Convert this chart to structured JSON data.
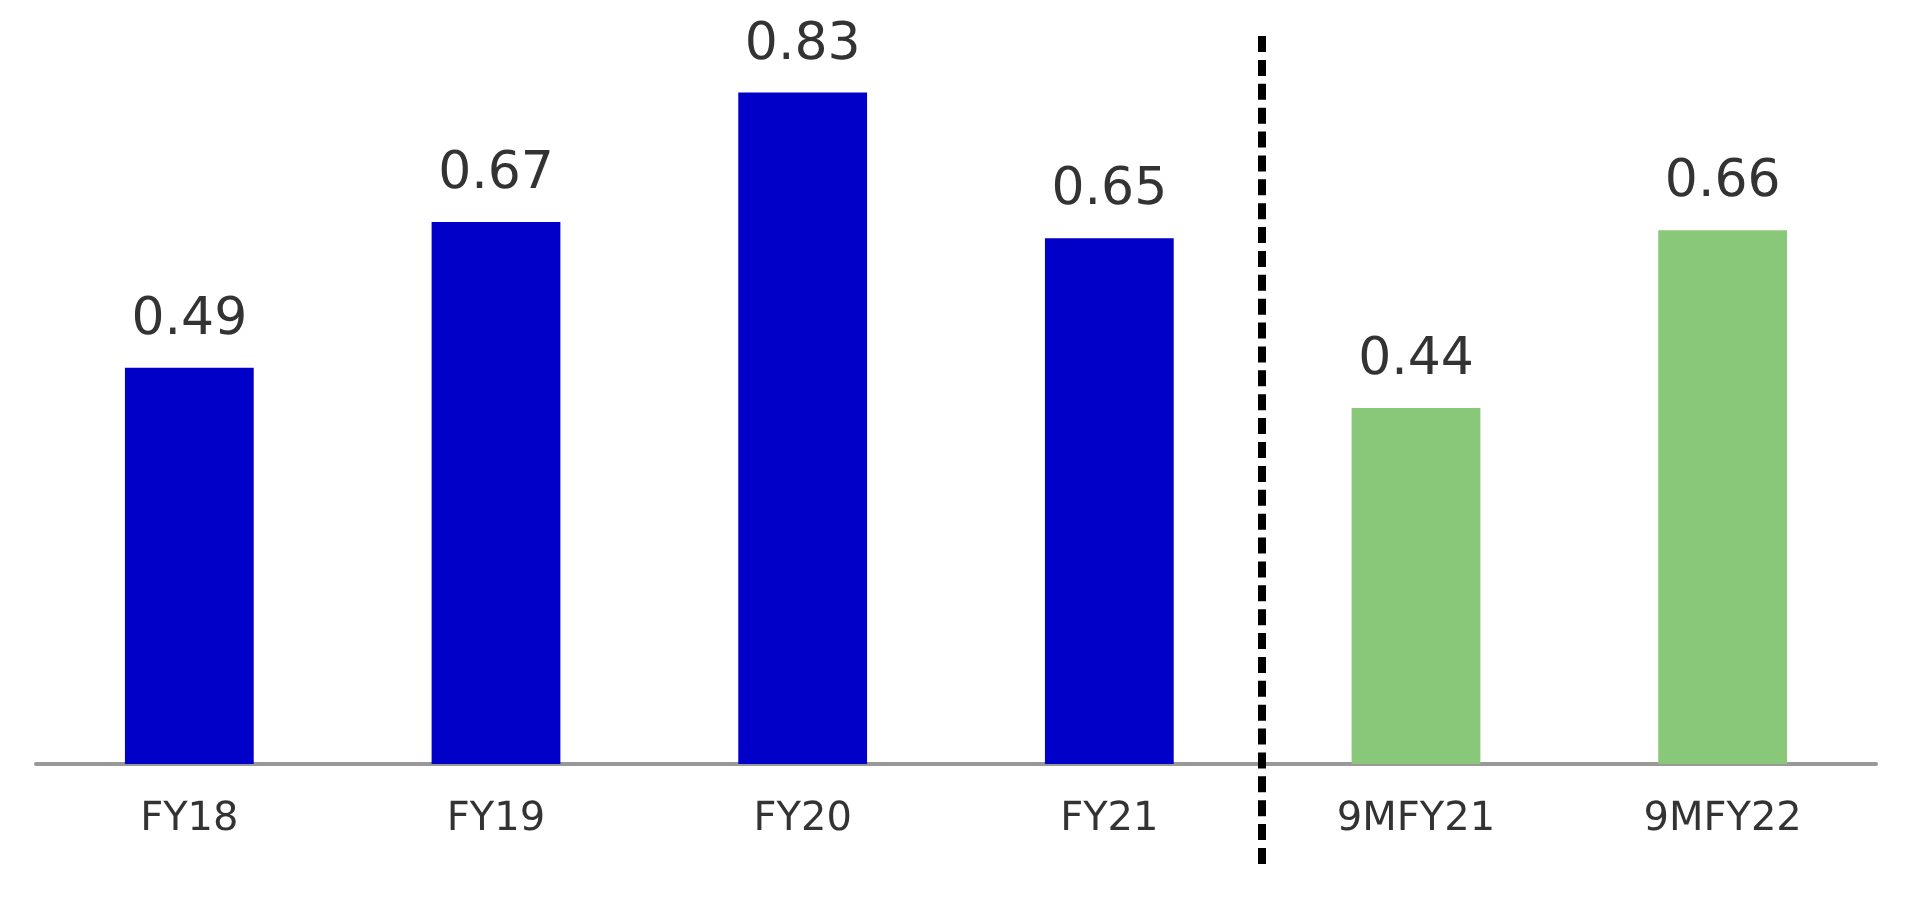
{
  "chart_data": {
    "type": "bar",
    "categories": [
      "FY18",
      "FY19",
      "FY20",
      "FY21",
      "9MFY21",
      "9MFY22"
    ],
    "values": [
      0.49,
      0.67,
      0.83,
      0.65,
      0.44,
      0.66
    ],
    "colors": [
      "#0000c8",
      "#0000c8",
      "#0000c8",
      "#0000c8",
      "#88c878",
      "#88c878"
    ],
    "data_labels": true,
    "tick_labels": "x"
  }
}
